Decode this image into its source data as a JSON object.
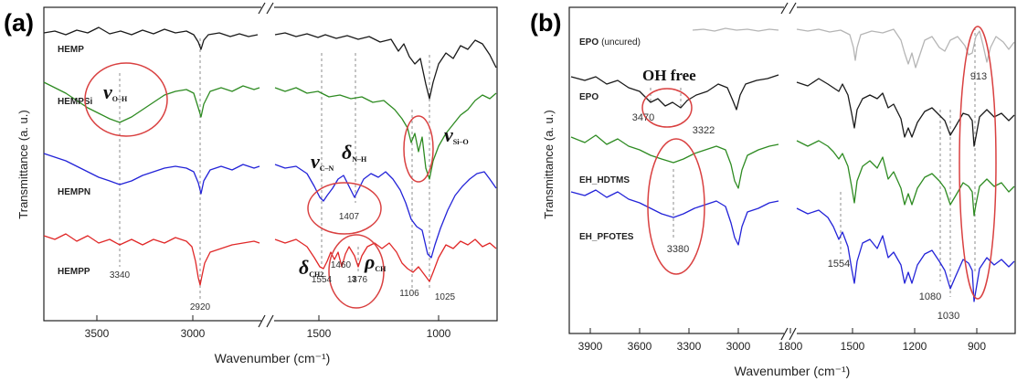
{
  "panels": [
    {
      "panel_label": "(a)",
      "xlabel": "Wavenumber (cm⁻¹)",
      "ylabel": "Transmittance (a. u.)",
      "colors": {
        "HEMP": "#1a1a1a",
        "HEMPSi": "#2e8b22",
        "HEMPN": "#2323d8",
        "HEMPP": "#e02828",
        "highlight": "#d94040",
        "guide": "#8c8c8c"
      },
      "series": [
        {
          "name": "HEMP",
          "color": "#1a1a1a"
        },
        {
          "name": "HEMPSi",
          "color": "#2e8b22"
        },
        {
          "name": "HEMPN",
          "color": "#2323d8"
        },
        {
          "name": "HEMPP",
          "color": "#e02828"
        }
      ],
      "segments": [
        {
          "x_range": [
            3700,
            2700
          ],
          "ticks": [
            3500,
            3000
          ]
        },
        {
          "x_range": [
            1750,
            700
          ],
          "ticks": [
            1500,
            1000
          ]
        }
      ],
      "peak_labels": [
        "3340",
        "2920",
        "1554",
        "1460",
        "1376",
        "1106",
        "1025",
        "1407"
      ],
      "band_labels": [
        {
          "symbol": "ν",
          "sub": "O–H"
        },
        {
          "symbol": "ν",
          "sub": "C–N"
        },
        {
          "symbol": "δ",
          "sub": "N–H"
        },
        {
          "symbol": "ν",
          "sub": "Si–O"
        },
        {
          "symbol": "δ",
          "sub": "CH2"
        },
        {
          "symbol": "ρ",
          "sub": "CH",
          "sub2": "3"
        }
      ]
    },
    {
      "panel_label": "(b)",
      "xlabel": "Wavenumber (cm⁻¹)",
      "ylabel": "Transmittance (a. u.)",
      "colors": {
        "EPO_uncured": "#b5b5b5",
        "EPO": "#1a1a1a",
        "EH_HDTMS": "#2e8b22",
        "EH_PFOTES": "#2323d8",
        "highlight": "#d94040",
        "guide": "#8c8c8c"
      },
      "series": [
        {
          "name": "EPO",
          "name_suffix": "(uncured)",
          "color": "#b5b5b5"
        },
        {
          "name": "EPO",
          "color": "#1a1a1a"
        },
        {
          "name": "EH_HDTMS",
          "color": "#2e8b22"
        },
        {
          "name": "EH_PFOTES",
          "color": "#2323d8"
        }
      ],
      "segments": [
        {
          "x_range": [
            4000,
            1800
          ],
          "ticks": [
            3900,
            3600,
            3300,
            3000,
            1800
          ]
        },
        {
          "x_range": [
            1800,
            700
          ],
          "ticks": [
            1500,
            1200,
            900
          ]
        }
      ],
      "annotation": "OH free",
      "peak_labels": [
        "3470",
        "3322",
        "3380",
        "1554",
        "1080",
        "1030",
        "913"
      ]
    }
  ]
}
